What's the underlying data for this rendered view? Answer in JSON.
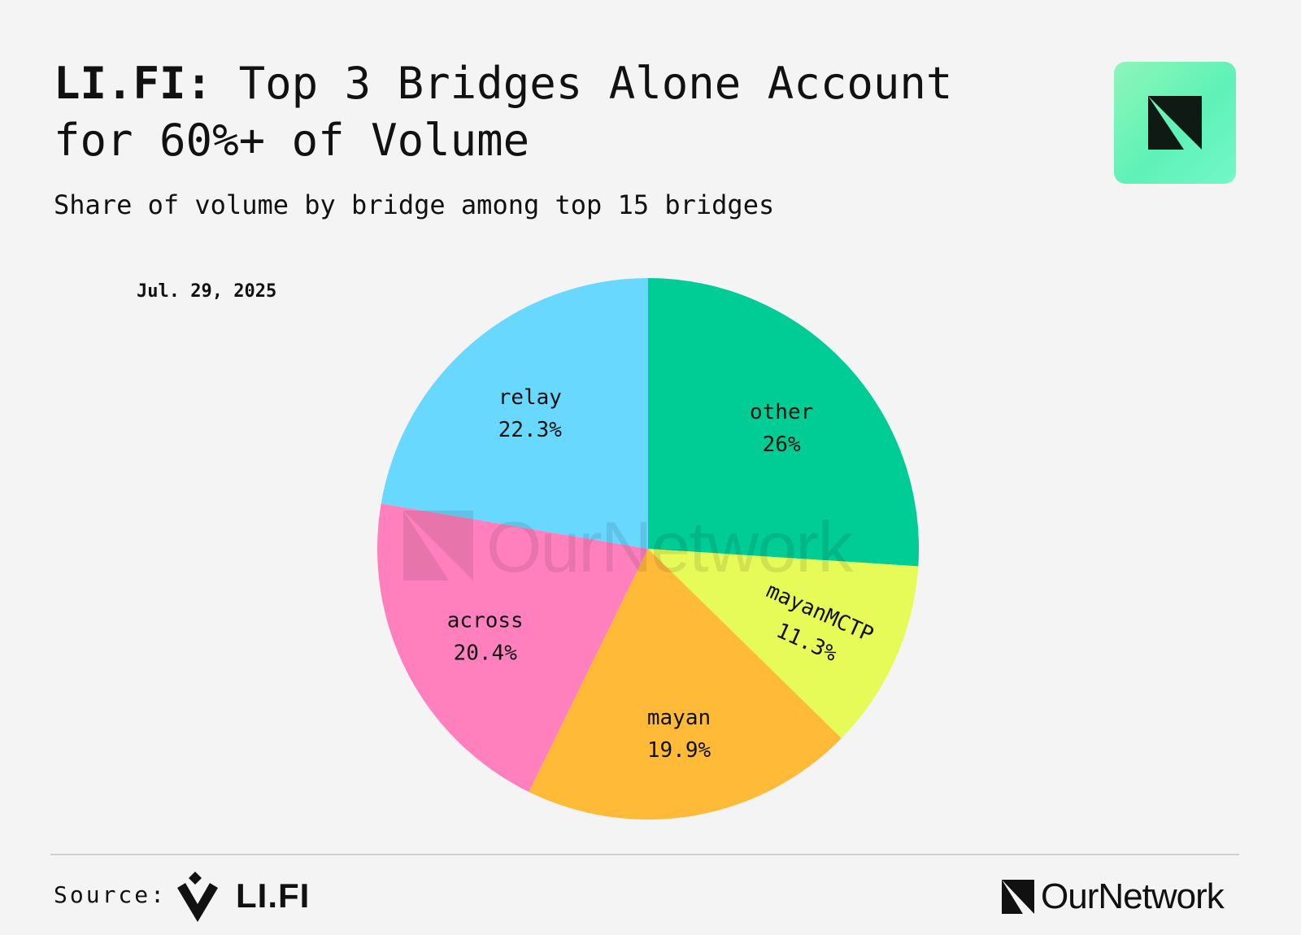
{
  "header": {
    "title_bold": "LI.FI:",
    "title_rest": " Top 3 Bridges Alone Account\nfor 60%+ of Volume",
    "subtitle": "Share of volume by bridge among top 15 bridges"
  },
  "chart_data": {
    "type": "pie",
    "title": "LI.FI: Top 3 Bridges Alone Account for 60%+ of Volume",
    "subtitle": "Share of volume by bridge among top 15 bridges",
    "date": "Jul. 29, 2025",
    "slices": [
      {
        "label": "other",
        "value": 26,
        "display": "26%",
        "color": "#00cc96"
      },
      {
        "label": "mayanMCTP",
        "value": 11.3,
        "display": "11.3%",
        "color": "#e6fb58"
      },
      {
        "label": "mayan",
        "value": 19.9,
        "display": "19.9%",
        "color": "#ffbb38"
      },
      {
        "label": "across",
        "value": 20.4,
        "display": "20.4%",
        "color": "#ff80bd"
      },
      {
        "label": "relay",
        "value": 22.3,
        "display": "22.3%",
        "color": "#68d8ff"
      }
    ],
    "start_angle": "12 o'clock",
    "direction": "clockwise"
  },
  "watermark": {
    "text": "OurNetwork"
  },
  "footer": {
    "source_label": "Source:",
    "source_name": "LI.FI",
    "brand_name": "OurNetwork"
  },
  "icons": {
    "badge": "ournetwork-logo-icon",
    "source": "lifi-logo-icon",
    "footer_brand": "ournetwork-logo-icon"
  },
  "colors": {
    "background": "#f4f4f4",
    "badge_gradient_start": "#8ff5b8",
    "badge_gradient_end": "#74f7c9"
  }
}
